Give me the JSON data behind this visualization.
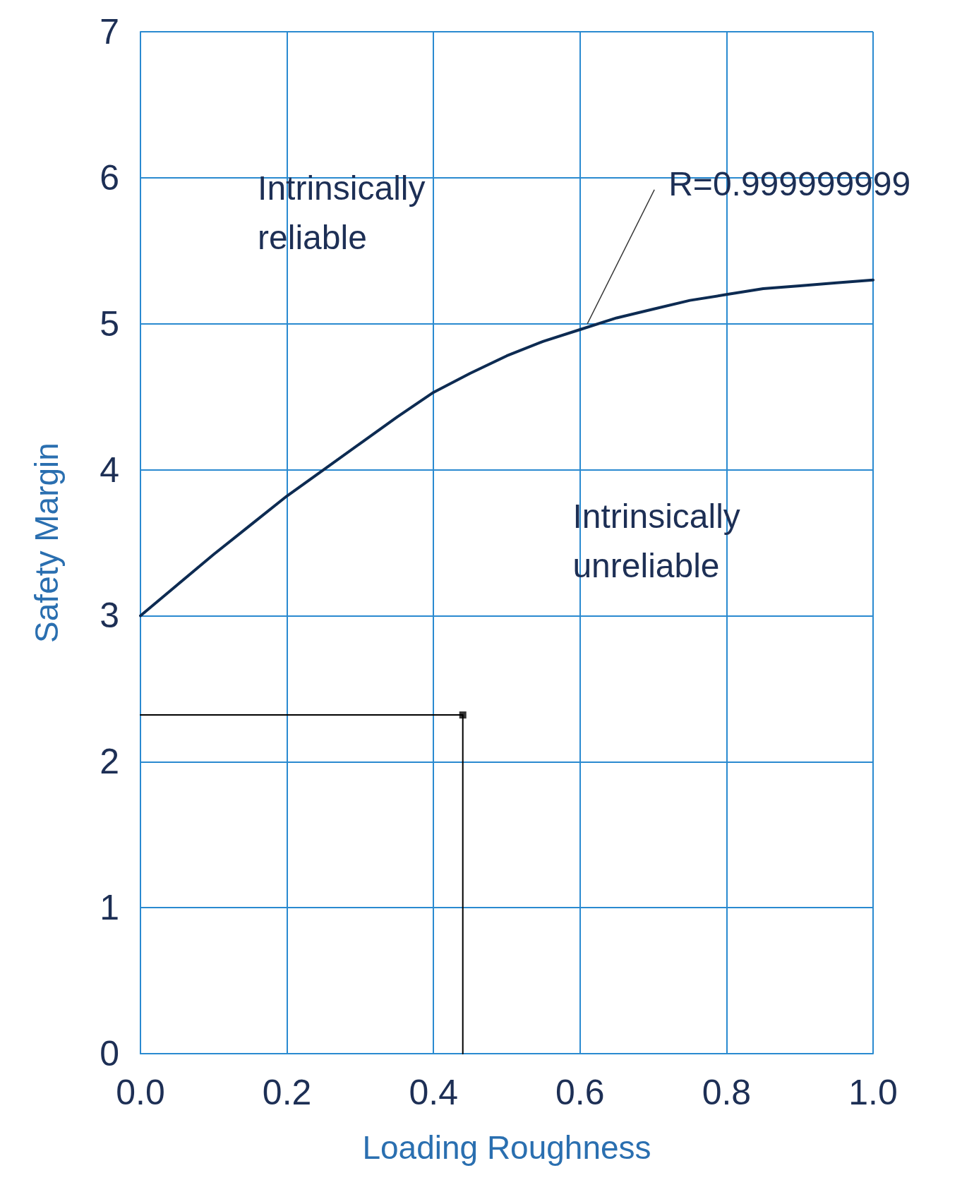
{
  "chart_data": {
    "type": "line",
    "xlabel": "Loading Roughness",
    "ylabel": "Safety Margin",
    "xlim": [
      0,
      1
    ],
    "xticks": [
      {
        "value": 0,
        "label": "0.0"
      },
      {
        "value": 0.2,
        "label": "0.2"
      },
      {
        "value": 0.4,
        "label": "0.4"
      },
      {
        "value": 0.6,
        "label": "0.6"
      },
      {
        "value": 0.8,
        "label": "0.8"
      },
      {
        "value": 1,
        "label": "1.0"
      }
    ],
    "ylim": [
      0,
      7
    ],
    "yticks": [
      0,
      1,
      2,
      3,
      4,
      5,
      6,
      7
    ],
    "grid": true,
    "series": [
      {
        "color": "#0d2b52",
        "x": [
          0,
          0.05,
          0.1,
          0.15,
          0.2,
          0.25,
          0.3,
          0.35,
          0.4,
          0.45,
          0.5,
          0.55,
          0.6,
          0.65,
          0.7,
          0.75,
          0.8,
          0.85,
          0.9,
          0.95,
          1.0
        ],
        "values": [
          3,
          3.21,
          3.42,
          3.62,
          3.82,
          4.0,
          4.18,
          4.36,
          4.53,
          4.66,
          4.78,
          4.88,
          4.96,
          5.04,
          5.1,
          5.16,
          5.2,
          5.24,
          5.26,
          5.28,
          5.3
        ]
      },
      {
        "color": "#000000",
        "marker": "none",
        "x": [
          0,
          0.44,
          0.44
        ],
        "values": [
          2.32,
          2.32,
          0
        ]
      },
      {
        "type": "scatter",
        "color": "#000000",
        "marker": "square",
        "x": [
          0.44
        ],
        "values": [
          2.32
        ]
      }
    ],
    "annotations": [
      "Intrinsically\nreliable",
      "Intrinsically\nunreliable",
      {
        "text": "R=0.999999999",
        "x": 0.61,
        "y": 5.0
      }
    ]
  }
}
